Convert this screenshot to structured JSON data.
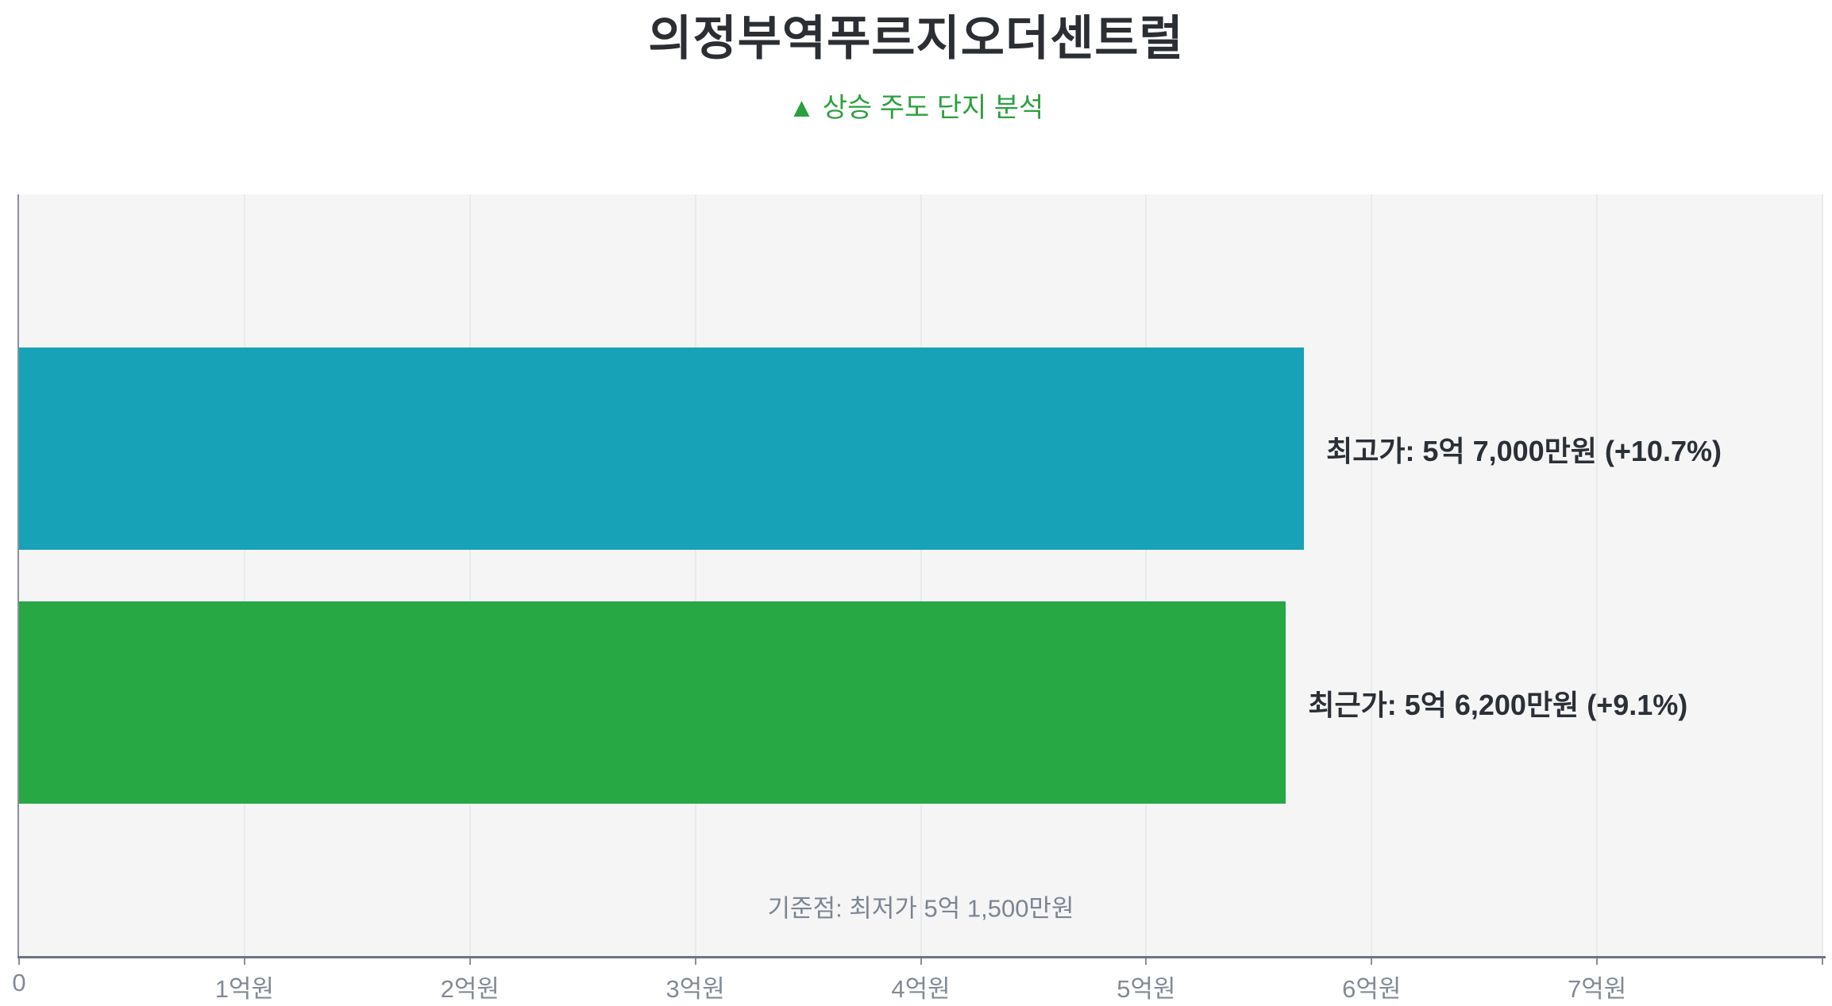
{
  "header": {
    "title": "의정부역푸르지오더센트럴",
    "subtitle": "▲ 상승 주도 단지 분석",
    "title_color": "#2b2e33",
    "subtitle_color": "#2ba03e"
  },
  "chart_data": {
    "type": "bar",
    "orientation": "horizontal",
    "title": "의정부역푸르지오더센트럴",
    "subtitle": "▲ 상승 주도 단지 분석",
    "categories": [
      "최고가",
      "최근가"
    ],
    "values": [
      5.7,
      5.62
    ],
    "value_unit": "억원",
    "pct_change": [
      10.7,
      9.1
    ],
    "bar_colors": [
      "#18a2b7",
      "#28a745"
    ],
    "bar_labels": [
      "최고가: 5억 7,000만원 (+10.7%)",
      "최근가: 5억 6,200만원 (+9.1%)"
    ],
    "annotation": "기준점: 최저가 5억 1,500만원",
    "baseline_value": 5.15,
    "xlabel": "",
    "ylabel": "",
    "xlim": [
      0,
      8
    ],
    "grid": "vertical",
    "legend_position": "none",
    "plot_background": "#f5f5f6",
    "grid_color": "#e8eaeb",
    "ticks": [
      {
        "value": 0,
        "label": "0"
      },
      {
        "value": 1,
        "label": "1억원"
      },
      {
        "value": 2,
        "label": "2억원"
      },
      {
        "value": 3,
        "label": "3억원"
      },
      {
        "value": 4,
        "label": "4억원"
      },
      {
        "value": 5,
        "label": "5억원"
      },
      {
        "value": 6,
        "label": "6억원"
      },
      {
        "value": 7,
        "label": "7억원"
      },
      {
        "value": 8,
        "label": ""
      }
    ],
    "gridlines": [
      1,
      2,
      3,
      4,
      5,
      6,
      7,
      8
    ]
  }
}
